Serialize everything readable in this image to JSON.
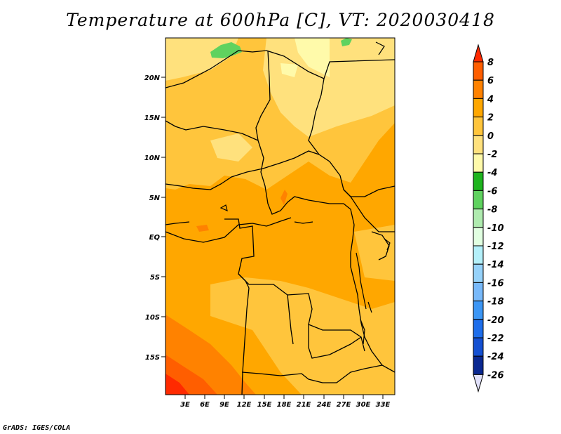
{
  "title": "Temperature at 600hPa [C], VT: 2020030418",
  "credit": "GrADS: IGES/COLA",
  "map": {
    "lat_labels": [
      "20N",
      "15N",
      "10N",
      "5N",
      "EQ",
      "5S",
      "10S",
      "15S"
    ],
    "lon_labels": [
      "3E",
      "6E",
      "9E",
      "12E",
      "15E",
      "18E",
      "21E",
      "24E",
      "27E",
      "30E",
      "33E"
    ],
    "base_color": "#ffa700"
  },
  "colorbar": {
    "labels": [
      "8",
      "6",
      "4",
      "2",
      "0",
      "-2",
      "-4",
      "-6",
      "-8",
      "-10",
      "-12",
      "-14",
      "-16",
      "-18",
      "-20",
      "-22",
      "-24",
      "-26"
    ],
    "colors": [
      "#ff2a00",
      "#ff5e00",
      "#ff8200",
      "#ffa700",
      "#ffc53c",
      "#ffe17d",
      "#fffaaa",
      "#1eb41e",
      "#5fd25f",
      "#afebaf",
      "#e1ffe1",
      "#b4f0fa",
      "#96d2fa",
      "#78b9fa",
      "#3c96f5",
      "#1e6eeb",
      "#1450d2",
      "#0a2891",
      "#0a1464",
      "#e1e1fa"
    ]
  }
}
